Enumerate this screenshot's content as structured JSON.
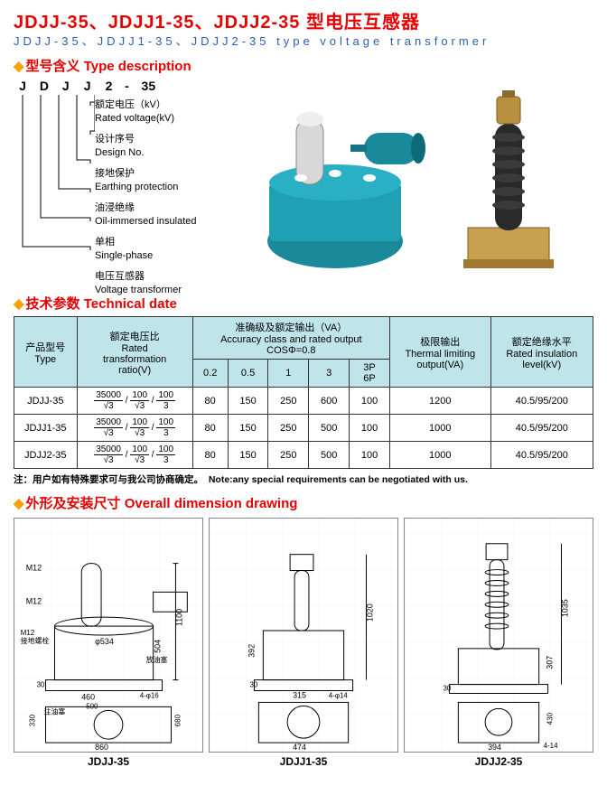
{
  "title": {
    "cn": "JDJJ-35、JDJJ1-35、JDJJ2-35 型电压互感器",
    "en": "JDJJ-35、JDJJ1-35、JDJJ2-35 type voltage transformer"
  },
  "sections": {
    "type_desc": "型号含义 Type description",
    "tech": "技术参数 Technical date",
    "dim": "外形及安装尺寸 Overall dimension drawing"
  },
  "code": {
    "letters": [
      "J",
      "D",
      "J",
      "J",
      "2",
      "-",
      "35"
    ]
  },
  "desc_items": [
    {
      "cn": "额定电压（kV）",
      "en": "Rated voltage(kV)"
    },
    {
      "cn": "设计序号",
      "en": "Design No."
    },
    {
      "cn": "接地保护",
      "en": "Earthing protection"
    },
    {
      "cn": "油浸绝缘",
      "en": "Oil-immersed insulated"
    },
    {
      "cn": "单相",
      "en": "Single-phase"
    },
    {
      "cn": "电压互感器",
      "en": "Voltage transformer"
    }
  ],
  "table": {
    "headers": {
      "type": {
        "l1": "产品型号",
        "l2": "Type"
      },
      "ratio": {
        "l1": "额定电压比",
        "l2": "Rated",
        "l3": "transformation",
        "l4": "ratio(V)"
      },
      "acc_group": {
        "l1": "准确级及额定输出（VA）",
        "l2": "Accuracy class and rated output",
        "l3": "COSΦ=0.8"
      },
      "acc_cols": [
        "0.2",
        "0.5",
        "1",
        "3",
        "3P\n6P"
      ],
      "thermal": {
        "l1": "极限输出",
        "l2": "Thermal limiting",
        "l3": "output(VA)"
      },
      "ins": {
        "l1": "额定绝缘水平",
        "l2": "Rated insulation",
        "l3": "level(kV)"
      }
    },
    "ratio_fracs": [
      {
        "n": "35000",
        "d": "√3"
      },
      {
        "n": "100",
        "d": "√3"
      },
      {
        "n": "100",
        "d": "3"
      }
    ],
    "rows": [
      {
        "type": "JDJJ-35",
        "acc": [
          "80",
          "150",
          "250",
          "600",
          "100"
        ],
        "thermal": "1200",
        "ins": "40.5/95/200"
      },
      {
        "type": "JDJJ1-35",
        "acc": [
          "80",
          "150",
          "250",
          "500",
          "100"
        ],
        "thermal": "1000",
        "ins": "40.5/95/200"
      },
      {
        "type": "JDJJ2-35",
        "acc": [
          "80",
          "150",
          "250",
          "500",
          "100"
        ],
        "thermal": "1000",
        "ins": "40.5/95/200"
      }
    ]
  },
  "note": {
    "cn": "注：用户如有特殊要求可与我公司协商确定。",
    "en": "Note:any special requirements can be negotiated with us."
  },
  "dims": [
    {
      "label": "JDJJ-35",
      "nums": [
        "M12",
        "M12",
        "φ534",
        "504",
        "1100",
        "30",
        "460",
        "500",
        "4-φ16",
        "860",
        "330",
        "680",
        "M12",
        "接地螺栓",
        "放油塞",
        "注油塞"
      ]
    },
    {
      "label": "JDJJ1-35",
      "nums": [
        "1020",
        "392",
        "30",
        "315",
        "4-φ14",
        "474"
      ]
    },
    {
      "label": "JDJJ2-35",
      "nums": [
        "1035",
        "307",
        "30",
        "394",
        "430",
        "4-14"
      ]
    }
  ],
  "colors": {
    "red": "#e60000",
    "blue": "#2a5db0",
    "orange": "#f5a300",
    "th_bg": "#bfe4ea",
    "teal": "#1a8a9a",
    "gold_body": "#c9a050"
  }
}
